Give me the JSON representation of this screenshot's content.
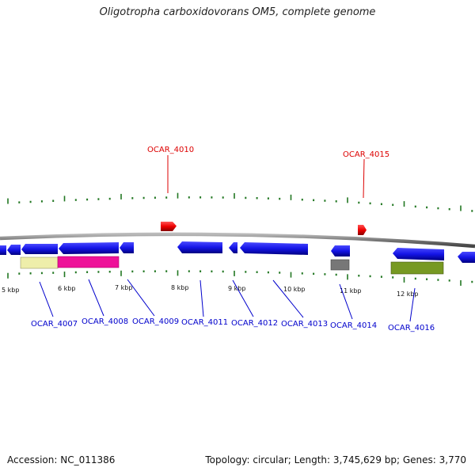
{
  "title": "Oligotropha carboxidovorans OM5, complete genome",
  "footer": {
    "accession": "Accession: NC_011386",
    "topology": "Topology: circular; Length: 3,745,629 bp; Genes: 3,770"
  },
  "colors": {
    "forward_gene": "#dd0000",
    "reverse_gene": "#1010dd",
    "backbone": "#888888",
    "tick": "#227722",
    "blue_label": "#0000cc",
    "red_label": "#dd0000"
  },
  "scale_ticks": [
    {
      "text": "5 kbp"
    },
    {
      "text": "6 kbp"
    },
    {
      "text": "7 kbp"
    },
    {
      "text": "8 kbp"
    },
    {
      "text": "9 kbp"
    },
    {
      "text": "10 kbp"
    },
    {
      "text": "11 kbp"
    },
    {
      "text": "12 kbp"
    }
  ],
  "top_labels": [
    {
      "text": "OCAR_4010"
    },
    {
      "text": "OCAR_4015"
    }
  ],
  "bottom_labels": [
    {
      "text": "OCAR_4007"
    },
    {
      "text": "OCAR_4008"
    },
    {
      "text": "OCAR_4009"
    },
    {
      "text": "OCAR_4011"
    },
    {
      "text": "OCAR_4012"
    },
    {
      "text": "OCAR_4013"
    },
    {
      "text": "OCAR_4014"
    },
    {
      "text": "OCAR_4016"
    }
  ],
  "features": {
    "yellow": "#eeeeaa",
    "magenta": "#ee1199",
    "gray": "#777777",
    "olive": "#779922"
  }
}
